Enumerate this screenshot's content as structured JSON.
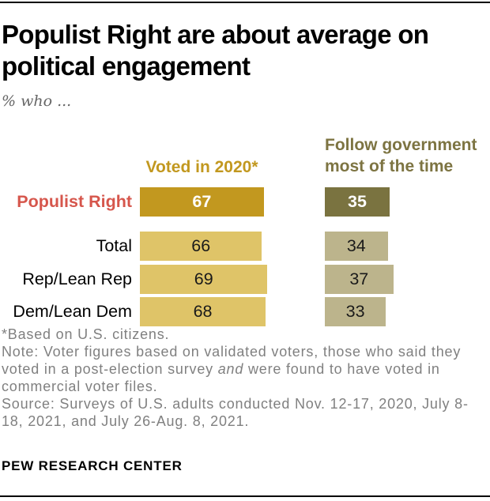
{
  "title": "Populist Right are about average on political engagement",
  "subtitle": "% who ...",
  "colors": {
    "voted_dark": "#C2981F",
    "voted_light": "#DFC468",
    "follow_dark": "#7A7340",
    "follow_light": "#BCB48C",
    "highlight_label": "#D6564C",
    "header_voted": "#C2981F",
    "header_follow": "#7D7442",
    "note_gray": "#808080",
    "rule_black": "#000000"
  },
  "chart_data": {
    "type": "bar",
    "categories": [
      "Populist Right",
      "Total",
      "Rep/Lean Rep",
      "Dem/Lean Dem"
    ],
    "series": [
      {
        "name": "Voted in 2020*",
        "values": [
          67,
          66,
          69,
          68
        ]
      },
      {
        "name": "Follow government most of the time",
        "values": [
          35,
          34,
          37,
          33
        ]
      }
    ],
    "highlight_category": "Populist Right",
    "value_range": [
      0,
      100
    ],
    "grid": false,
    "legend_position": "column headers above bars"
  },
  "notes": {
    "asterisk": "*Based on U.S. citizens.",
    "note_prefix": "Note: Voter figures based on validated voters, those who said they voted in a post-election survey ",
    "note_italic": "and",
    "note_suffix": " were found to have voted in commercial voter files.",
    "source": "Source: Surveys of U.S. adults conducted Nov. 12-17, 2020, July 8-18, 2021, and July 26-Aug. 8, 2021."
  },
  "footer": "PEW RESEARCH CENTER"
}
